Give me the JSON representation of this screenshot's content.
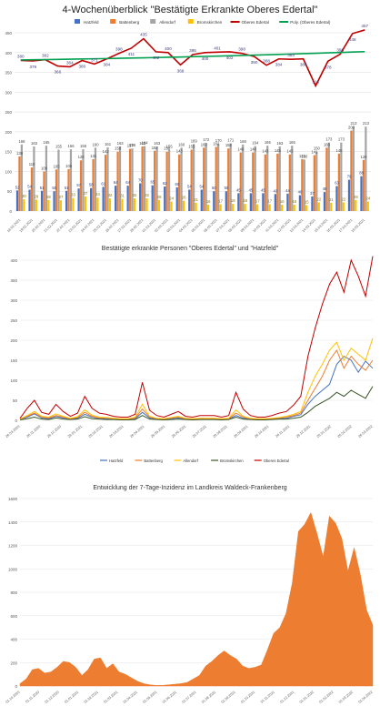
{
  "chart_data": [
    {
      "type": "bar",
      "title": "4-Wochenüberblick \"Bestätigte Erkrankte Oberes Edertal\"",
      "ylim": [
        0,
        450
      ],
      "yticks": [
        0,
        50,
        100,
        150,
        200,
        250,
        300,
        350,
        400,
        450
      ],
      "grid": true,
      "legend_position": "top",
      "categories": [
        "18.02.2021",
        "19.02.2021",
        "20.02.2021",
        "21.02.2021",
        "22.02.2021",
        "23.02.2021",
        "24.02.2021",
        "25.02.2021",
        "26.02.2021",
        "27.02.2021",
        "28.02.2021",
        "01.03.2021",
        "02.03.2021",
        "03.03.2021",
        "04.03.2021",
        "05.03.2021",
        "06.03.2021",
        "07.03.2021",
        "08.03.2021",
        "09.03.2021",
        "10.03.2021",
        "11.03.2021",
        "12.03.2021",
        "13.03.2021",
        "14.03.2021",
        "15.03.2021",
        "16.03.2021",
        "17.03.2021",
        "18.03.2021"
      ],
      "series": [
        {
          "name": "Hatzfeld",
          "color": "#4472c4",
          "values": [
            52,
            54,
            51,
            50,
            51,
            57,
            58,
            61,
            64,
            64,
            70,
            65,
            62,
            60,
            54,
            54,
            50,
            50,
            45,
            45,
            45,
            43,
            44,
            40,
            37,
            48,
            63,
            79,
            88
          ]
        },
        {
          "name": "Battenberg",
          "color": "#ed7d31",
          "values": [
            138,
            110,
            100,
            105,
            106,
            128,
            131,
            142,
            150,
            157,
            163,
            152,
            150,
            143,
            155,
            160,
            162,
            158,
            148,
            148,
            143,
            145,
            143,
            131,
            141,
            160,
            145,
            203,
            129
          ]
        },
        {
          "name": "Allendorf",
          "color": "#a5a5a5",
          "values": [
            168,
            163,
            165,
            155,
            156,
            156,
            160,
            161,
            163,
            158,
            164,
            163,
            155,
            160,
            169,
            172,
            170,
            171,
            168,
            164,
            165,
            163,
            165,
            130,
            150,
            173,
            173,
            213,
            213
          ]
        },
        {
          "name": "Bromskirchen",
          "color": "#ffc000",
          "values": [
            30,
            29,
            28,
            27,
            33,
            37,
            34,
            32,
            31,
            32,
            32,
            28,
            24,
            26,
            21,
            16,
            17,
            18,
            18,
            17,
            17,
            16,
            16,
            15,
            22,
            21,
            22,
            28,
            24
          ]
        },
        {
          "name": "Oberes Edertal",
          "color": "#c00000",
          "type": "line",
          "values": [
            380,
            379,
            382,
            366,
            364,
            380,
            371,
            384,
            398,
            411,
            435,
            402,
            400,
            369,
            395,
            400,
            401,
            402,
            398,
            390,
            368,
            384,
            383,
            384,
            316,
            378,
            396,
            448,
            457
          ]
        },
        {
          "name": "Poly. (Oberes Edertal)",
          "color": "#00a050",
          "type": "trendline"
        }
      ],
      "line_labels": [
        "380",
        "379",
        "382",
        "366",
        "364",
        "380",
        "371",
        "384",
        "398",
        "411",
        "435",
        "402",
        "400",
        "369",
        "395",
        "400",
        "401",
        "402",
        "398",
        "390",
        "368",
        "384",
        "383",
        "384",
        "316",
        "378",
        "396",
        "448",
        "457"
      ]
    },
    {
      "type": "line",
      "title": "Bestätigte erkrankte Personen \"Oberes Edertal\" und \"Hatzfeld\"",
      "ylim": [
        0,
        400
      ],
      "yticks": [
        0,
        50,
        100,
        150,
        200,
        250,
        300,
        350,
        400
      ],
      "grid": true,
      "legend_position": "bottom",
      "x_tick_labels": [
        "26.03.2020",
        "26.11.2020",
        "26.12.2020",
        "26.01.2021",
        "26.02.2021",
        "26.03.2021",
        "26.04.2021",
        "26.05.2021",
        "26.06.2021",
        "26.07.2021",
        "26.08.2021",
        "26.09.2021",
        "26.10.2021",
        "26.11.2021",
        "26.12.2021",
        "26.01.2022",
        "26.02.2022",
        "26.03.2022"
      ],
      "series": [
        {
          "name": "Hatzfeld",
          "color": "#4472c4",
          "values": [
            2,
            8,
            16,
            6,
            4,
            10,
            6,
            3,
            5,
            15,
            8,
            5,
            4,
            3,
            2,
            2,
            4,
            20,
            6,
            3,
            2,
            4,
            6,
            3,
            2,
            3,
            3,
            3,
            2,
            3,
            12,
            5,
            3,
            2,
            2,
            3,
            4,
            5,
            10,
            14,
            40,
            60,
            75,
            90,
            140,
            160,
            150,
            120,
            148,
            130
          ]
        },
        {
          "name": "Battenberg",
          "color": "#ed7d31",
          "values": [
            3,
            10,
            18,
            8,
            6,
            12,
            8,
            4,
            7,
            20,
            10,
            6,
            6,
            4,
            3,
            3,
            6,
            28,
            8,
            4,
            3,
            6,
            8,
            4,
            3,
            4,
            4,
            4,
            3,
            4,
            18,
            8,
            4,
            3,
            3,
            4,
            6,
            8,
            12,
            18,
            50,
            80,
            110,
            150,
            175,
            130,
            160,
            140,
            125,
            150
          ]
        },
        {
          "name": "Allendorf",
          "color": "#ffc000",
          "values": [
            3,
            12,
            22,
            10,
            8,
            16,
            10,
            5,
            9,
            26,
            13,
            8,
            7,
            5,
            4,
            4,
            8,
            40,
            10,
            5,
            4,
            7,
            10,
            5,
            4,
            5,
            5,
            5,
            4,
            5,
            26,
            10,
            5,
            4,
            4,
            5,
            7,
            10,
            15,
            22,
            70,
            110,
            140,
            175,
            195,
            150,
            180,
            165,
            150,
            205
          ]
        },
        {
          "name": "Bromskirchen",
          "color": "#375623",
          "values": [
            1,
            4,
            8,
            3,
            2,
            6,
            3,
            2,
            3,
            9,
            4,
            3,
            2,
            2,
            1,
            1,
            2,
            12,
            3,
            2,
            1,
            2,
            3,
            2,
            1,
            2,
            2,
            2,
            1,
            2,
            8,
            3,
            2,
            1,
            1,
            2,
            3,
            3,
            5,
            8,
            20,
            35,
            45,
            55,
            70,
            60,
            75,
            65,
            55,
            85
          ]
        },
        {
          "name": "Oberes Edertal",
          "color": "#c00000",
          "values": [
            5,
            30,
            50,
            20,
            15,
            40,
            22,
            10,
            18,
            60,
            30,
            18,
            15,
            10,
            8,
            8,
            15,
            95,
            25,
            12,
            8,
            15,
            22,
            10,
            8,
            12,
            12,
            12,
            8,
            12,
            70,
            28,
            12,
            8,
            8,
            12,
            18,
            22,
            38,
            60,
            160,
            230,
            290,
            340,
            370,
            320,
            400,
            360,
            310,
            410
          ]
        }
      ]
    },
    {
      "type": "area",
      "title": "Entwicklung der 7-Tage-Inzidenz im Landkreis Waldeck-Frankenberg",
      "ylim": [
        0,
        1600
      ],
      "yticks": [
        0,
        200,
        400,
        600,
        800,
        1000,
        1200,
        1400,
        1600
      ],
      "grid": true,
      "x_tick_labels": [
        "01.10.2020",
        "01.11.2020",
        "01.12.2020",
        "01.01.2021",
        "01.02.2021",
        "01.03.2021",
        "01.04.2021",
        "01.05.2021",
        "01.06.2021",
        "01.07.2021",
        "01.08.2021",
        "01.09.2021",
        "01.10.2021",
        "01.11.2021",
        "01.12.2021",
        "01.01.2022",
        "01.02.2022",
        "01.03.2022",
        "01.04.2022"
      ],
      "series": [
        {
          "name": "7-Tage-Inzidenz",
          "color": "#ed7d31",
          "values": [
            20,
            60,
            140,
            150,
            110,
            120,
            160,
            210,
            200,
            160,
            90,
            140,
            230,
            240,
            150,
            190,
            120,
            100,
            70,
            40,
            20,
            10,
            5,
            5,
            10,
            15,
            20,
            30,
            60,
            90,
            170,
            210,
            260,
            300,
            260,
            230,
            170,
            150,
            160,
            180,
            310,
            450,
            500,
            620,
            880,
            1320,
            1380,
            1480,
            1300,
            1100,
            1450,
            1390,
            1260,
            980,
            1180,
            950,
            650,
            520
          ]
        }
      ]
    }
  ]
}
